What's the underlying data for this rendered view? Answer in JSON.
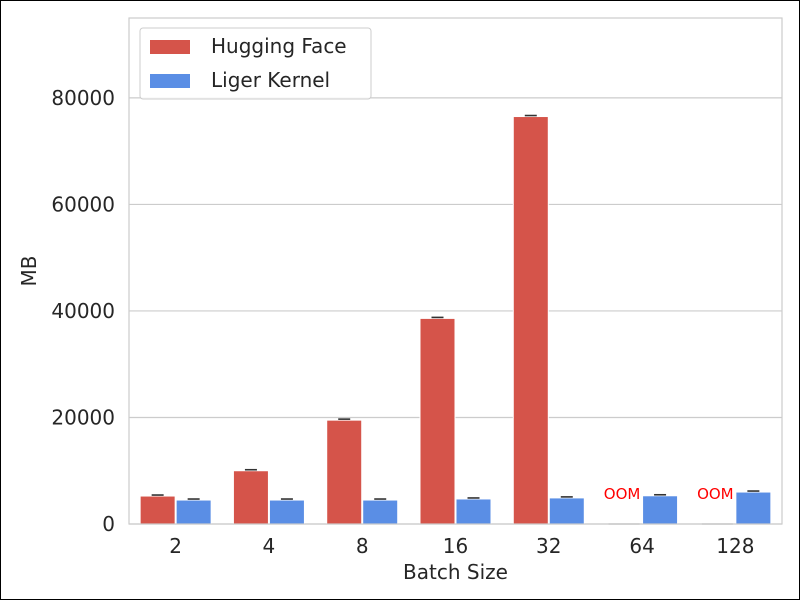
{
  "chart_data": {
    "type": "bar",
    "xlabel": "Batch Size",
    "ylabel": "MB",
    "ylim": [
      0,
      95000
    ],
    "yticks": [
      0,
      20000,
      40000,
      60000,
      80000
    ],
    "categories": [
      "2",
      "4",
      "8",
      "16",
      "32",
      "64",
      "128"
    ],
    "series": [
      {
        "name": "Hugging Face",
        "color": "#d5544a",
        "values": [
          5250,
          10000,
          19500,
          38600,
          76500,
          0,
          0
        ]
      },
      {
        "name": "Liger Kernel",
        "color": "#5a8ee5",
        "values": [
          4500,
          4500,
          4500,
          4700,
          4900,
          5300,
          6000
        ]
      }
    ],
    "annotations": [
      {
        "category": "64",
        "text": "OOM",
        "color": "#ff0000"
      },
      {
        "category": "128",
        "text": "OOM",
        "color": "#ff0000"
      }
    ],
    "grid": true,
    "legend": "top-left",
    "error_bars": true
  }
}
